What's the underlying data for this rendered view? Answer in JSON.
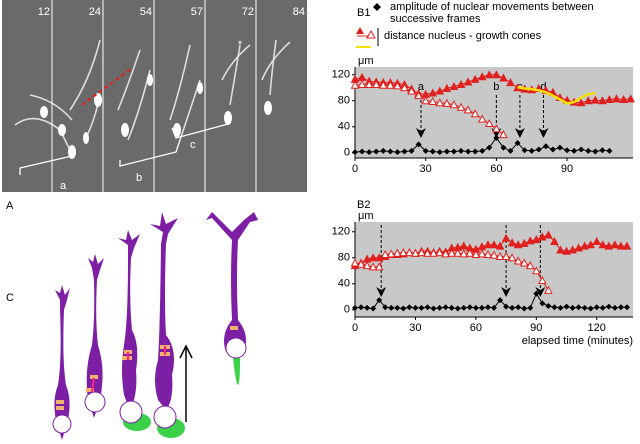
{
  "figure": {
    "panel_labels": [
      "A",
      "B1",
      "B2",
      "C"
    ],
    "frames": [
      12,
      24,
      54,
      57,
      72,
      84
    ],
    "star": "*",
    "brackets": [
      "a",
      "b",
      "c"
    ]
  },
  "chart_data": [
    {
      "type": "line",
      "y_label": "μm",
      "background": "#c8c8c8",
      "xlim": [
        0,
        118
      ],
      "ylim": [
        -8,
        132
      ],
      "xticks": [
        0,
        30,
        60,
        90
      ],
      "yticks": [
        0,
        40,
        80,
        120
      ],
      "legend": {
        "diamonds": "amplitude of nuclear movements between successive frames",
        "distance": "distance nucleus - growth cones"
      },
      "annotations": [
        {
          "x": 28,
          "label": "a"
        },
        {
          "x": 60,
          "label": "b"
        },
        {
          "x": 70,
          "label": "c"
        },
        {
          "x": 80,
          "label": "d"
        }
      ],
      "series": [
        {
          "marker": "filled-triangle",
          "color": "#e0201e",
          "x": [
            0,
            3,
            6,
            9,
            12,
            15,
            18,
            21,
            24,
            27,
            30,
            33,
            36,
            39,
            42,
            45,
            48,
            51,
            54,
            57,
            60,
            63,
            66,
            69,
            72,
            75,
            78,
            81,
            84,
            87,
            90,
            93,
            96,
            99,
            102,
            105,
            108,
            111,
            114,
            117
          ],
          "values": [
            113,
            116,
            110,
            109,
            108,
            108,
            107,
            105,
            98,
            91,
            90,
            92,
            95,
            99,
            102,
            105,
            109,
            113,
            117,
            120,
            120,
            115,
            108,
            100,
            98,
            97,
            99,
            96,
            93,
            85,
            81,
            78,
            77,
            80,
            81,
            80,
            82,
            83,
            82,
            83
          ]
        },
        {
          "marker": "hollow-triangle",
          "color": "#e0201e",
          "x": [
            0,
            3,
            6,
            9,
            12,
            15,
            18,
            21,
            24,
            27,
            30,
            33,
            36,
            39,
            42,
            45,
            48,
            51,
            54,
            57,
            60,
            63
          ],
          "values": [
            104,
            105,
            105,
            105,
            104,
            104,
            103,
            100,
            95,
            88,
            80,
            79,
            77,
            76,
            74,
            70,
            66,
            60,
            52,
            45,
            37,
            28
          ]
        },
        {
          "marker": "none",
          "color": "#f5e000",
          "x": [
            69,
            72,
            75,
            78,
            81,
            84,
            87,
            90,
            93,
            96,
            99,
            102
          ],
          "values": [
            101,
            99,
            98,
            96,
            93,
            88,
            82,
            76,
            78,
            85,
            90,
            92
          ]
        },
        {
          "marker": "diamond",
          "color": "#000000",
          "x": [
            0,
            3,
            6,
            9,
            12,
            15,
            18,
            21,
            24,
            27,
            30,
            33,
            36,
            39,
            42,
            45,
            48,
            51,
            54,
            57,
            60,
            63,
            66,
            69,
            72,
            75,
            78,
            81,
            84,
            87,
            90,
            93,
            96,
            99,
            102,
            105,
            108
          ],
          "values": [
            1,
            2,
            1,
            2,
            3,
            2,
            1,
            2,
            3,
            13,
            3,
            2,
            1,
            2,
            2,
            3,
            2,
            2,
            3,
            8,
            23,
            8,
            3,
            15,
            4,
            3,
            5,
            10,
            5,
            8,
            4,
            3,
            5,
            3,
            2,
            4,
            3
          ]
        }
      ]
    },
    {
      "type": "line",
      "y_label": "μm",
      "x_label": "elapsed time (minutes)",
      "background": "#c8c8c8",
      "xlim": [
        0,
        138
      ],
      "ylim": [
        -11,
        135
      ],
      "xticks": [
        0,
        30,
        60,
        90,
        120
      ],
      "yticks": [
        0,
        40,
        80,
        120
      ],
      "arrows": [
        13,
        75,
        92
      ],
      "series": [
        {
          "marker": "filled-triangle",
          "color": "#e0201e",
          "x": [
            0,
            3,
            6,
            9,
            12,
            15,
            18,
            21,
            24,
            27,
            30,
            33,
            36,
            39,
            42,
            45,
            48,
            51,
            54,
            57,
            60,
            63,
            66,
            69,
            72,
            75,
            78,
            81,
            84,
            87,
            90,
            93,
            96,
            99,
            102,
            105,
            108,
            111,
            114,
            117,
            120,
            123,
            126,
            129,
            132,
            135
          ],
          "values": [
            68,
            72,
            78,
            80,
            80,
            82,
            85,
            85,
            86,
            88,
            87,
            90,
            90,
            88,
            90,
            89,
            95,
            96,
            98,
            95,
            93,
            97,
            100,
            100,
            98,
            110,
            103,
            100,
            102,
            106,
            108,
            112,
            115,
            105,
            92,
            90,
            92,
            95,
            98,
            100,
            105,
            100,
            98,
            100,
            98,
            98
          ]
        },
        {
          "marker": "hollow-triangle",
          "color": "#e0201e",
          "x": [
            0,
            3,
            6,
            9,
            12,
            15,
            18,
            21,
            24,
            27,
            30,
            33,
            36,
            39,
            42,
            45,
            48,
            51,
            54,
            57,
            60,
            63,
            66,
            69,
            72,
            75,
            78,
            81,
            84,
            87,
            90,
            93,
            96
          ],
          "values": [
            72,
            70,
            68,
            66,
            66,
            85,
            86,
            87,
            88,
            88,
            87,
            88,
            87,
            87,
            88,
            86,
            87,
            87,
            86,
            87,
            85,
            86,
            85,
            84,
            82,
            82,
            80,
            75,
            72,
            68,
            60,
            45,
            30
          ]
        },
        {
          "marker": "diamond",
          "color": "#000000",
          "x": [
            0,
            3,
            6,
            9,
            12,
            15,
            18,
            21,
            24,
            27,
            30,
            33,
            36,
            39,
            42,
            45,
            48,
            51,
            54,
            57,
            60,
            63,
            66,
            69,
            72,
            75,
            78,
            81,
            84,
            87,
            90,
            93,
            96,
            99,
            102,
            105,
            108,
            111,
            114,
            117,
            120,
            123,
            126,
            129,
            132,
            135
          ],
          "values": [
            3,
            4,
            3,
            2,
            15,
            4,
            3,
            3,
            2,
            4,
            3,
            3,
            4,
            2,
            3,
            4,
            3,
            2,
            3,
            4,
            3,
            3,
            4,
            3,
            15,
            5,
            3,
            4,
            2,
            3,
            25,
            10,
            6,
            4,
            3,
            5,
            3,
            4,
            3,
            2,
            4,
            3,
            5,
            3,
            4,
            4
          ]
        }
      ]
    }
  ]
}
